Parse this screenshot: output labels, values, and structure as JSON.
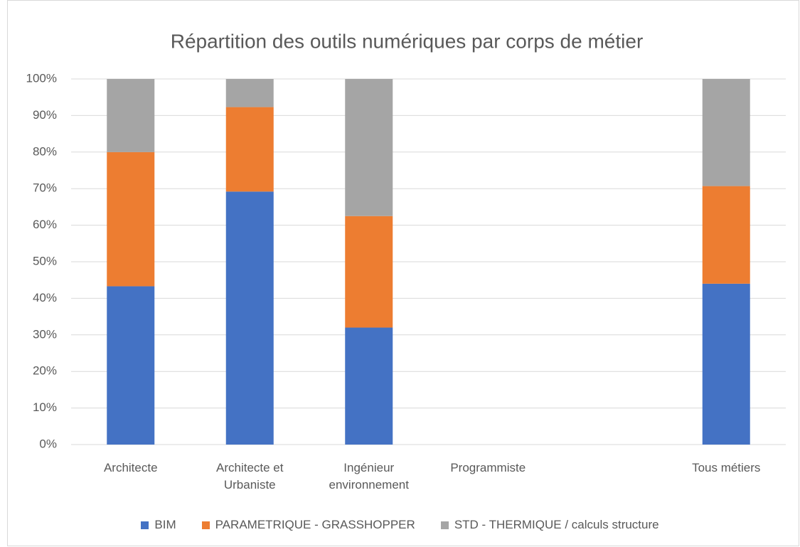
{
  "chart_data": {
    "type": "stacked_bar",
    "title": "Répartition des outils numériques par corps de métier",
    "categories": [
      "Architecte",
      "Architecte et Urbaniste",
      "Ingénieur environnement",
      "Programmiste",
      null,
      "Tous métiers"
    ],
    "series": [
      {
        "name": "BIM",
        "color": "#4472c4",
        "values": [
          43.3,
          69.2,
          32,
          null,
          null,
          44
        ]
      },
      {
        "name": "PARAMETRIQUE - GRASSHOPPER",
        "color": "#ed7d31",
        "values": [
          36.7,
          23.1,
          30.5,
          null,
          null,
          26.7
        ]
      },
      {
        "name": "STD - THERMIQUE / calculs structure",
        "color": "#a5a5a5",
        "values": [
          20,
          7.7,
          37.5,
          null,
          null,
          29.3
        ]
      }
    ],
    "ylim": [
      0,
      100
    ],
    "yticks": [
      {
        "value": 0,
        "label": "0%"
      },
      {
        "value": 10,
        "label": "10%"
      },
      {
        "value": 20,
        "label": "20%"
      },
      {
        "value": 30,
        "label": "30%"
      },
      {
        "value": 40,
        "label": "40%"
      },
      {
        "value": 50,
        "label": "50%"
      },
      {
        "value": 60,
        "label": "60%"
      },
      {
        "value": 70,
        "label": "70%"
      },
      {
        "value": 80,
        "label": "80%"
      },
      {
        "value": 90,
        "label": "90%"
      },
      {
        "value": 100,
        "label": "100%"
      }
    ],
    "grid": true,
    "legend": "bottom"
  }
}
